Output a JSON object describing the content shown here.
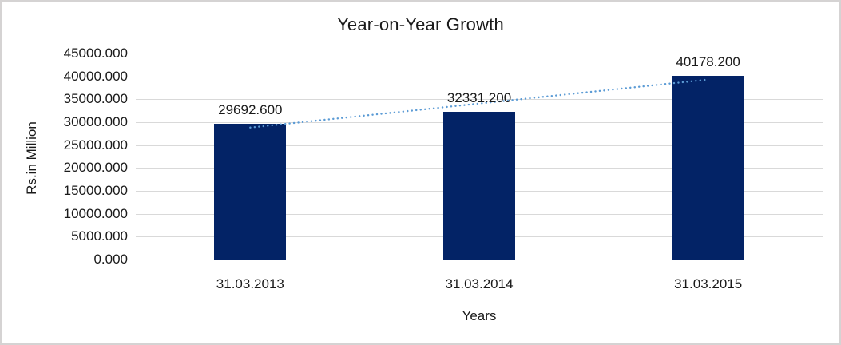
{
  "chart_data": {
    "type": "bar",
    "title": "Year-on-Year Growth",
    "xlabel": "Years",
    "ylabel": "Rs.in Million",
    "categories": [
      "31.03.2013",
      "31.03.2014",
      "31.03.2015"
    ],
    "values": [
      29692.6,
      32331.2,
      40178.2
    ],
    "data_labels": [
      "29692.600",
      "32331.200",
      "40178.200"
    ],
    "y_ticks": [
      "45000.000",
      "40000.000",
      "35000.000",
      "30000.000",
      "25000.000",
      "20000.000",
      "15000.000",
      "10000.000",
      "5000.000",
      "0.000"
    ],
    "ylim": [
      0,
      45000
    ],
    "y_step": 5000,
    "grid": "horizontal",
    "legend": "none",
    "trendline": {
      "type": "linear",
      "style": "dotted"
    },
    "colors": {
      "bar": "#032366",
      "trend": "#5B9BD5",
      "gridline": "#D9D9D9",
      "frame_border": "#D5D3D3",
      "background": "#FFFFFF",
      "text": "#1A1A1A"
    }
  }
}
